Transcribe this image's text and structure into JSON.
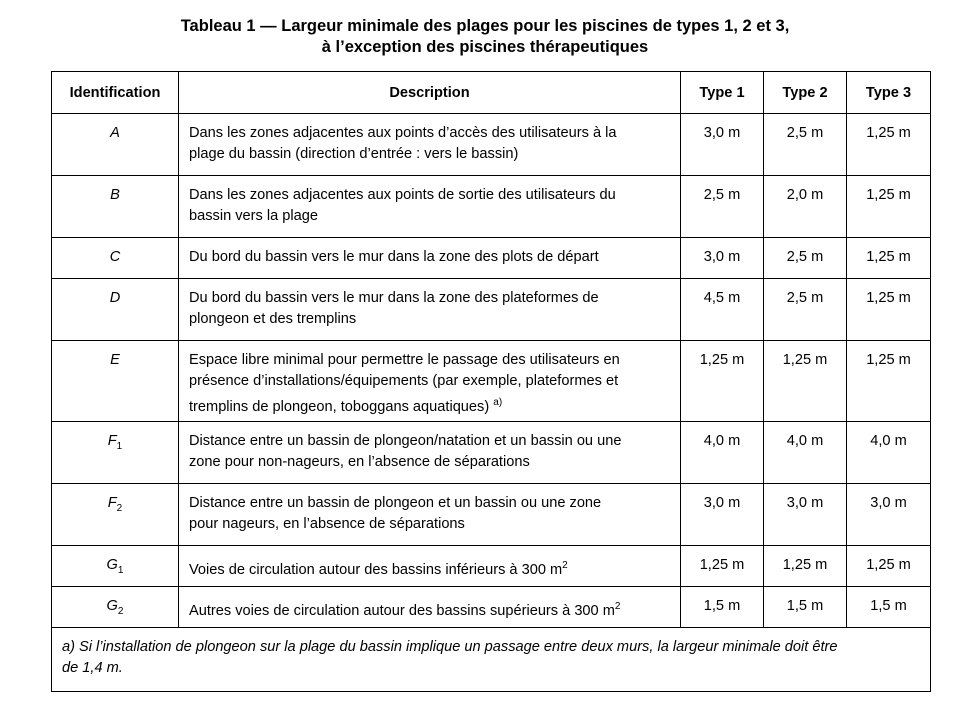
{
  "title": [
    "Tableau 1 — Largeur minimale des plages pour les piscines de types 1, 2 et 3,",
    "à l’exception des piscines thérapeutiques"
  ],
  "headers": [
    "Identification",
    "Description",
    "Type 1",
    "Type 2",
    "Type 3"
  ],
  "rows": [
    {
      "id": "A",
      "sub": "",
      "lines": [
        "Dans les zones adjacentes aux points d’accès des utilisateurs à la",
        "plage du bassin (direction d’entrée : vers le bassin)"
      ],
      "sup": "",
      "values": [
        "3,0 m",
        "2,5 m",
        "1,25 m"
      ]
    },
    {
      "id": "B",
      "sub": "",
      "lines": [
        "Dans les zones adjacentes aux points de sortie des utilisateurs du",
        "bassin vers la plage"
      ],
      "sup": "",
      "values": [
        "2,5 m",
        "2,0 m",
        "1,25 m"
      ]
    },
    {
      "id": "C",
      "sub": "",
      "lines": [
        "Du bord du bassin vers le mur dans la zone des plots de départ"
      ],
      "sup": "",
      "values": [
        "3,0 m",
        "2,5 m",
        "1,25 m"
      ]
    },
    {
      "id": "D",
      "sub": "",
      "lines": [
        "Du bord du bassin vers le mur dans la zone des plateformes de",
        "plongeon et des tremplins"
      ],
      "sup": "",
      "values": [
        "4,5 m",
        "2,5 m",
        "1,25 m"
      ]
    },
    {
      "id": "E",
      "sub": "",
      "lines": [
        "Espace libre minimal pour permettre le passage des utilisateurs en",
        "présence d’installations/équipements (par exemple, plateformes et",
        "tremplins de plongeon, toboggans aquatiques) "
      ],
      "sup": "a)",
      "values": [
        "1,25 m",
        "1,25 m",
        "1,25 m"
      ]
    },
    {
      "id": "F",
      "sub": "1",
      "lines": [
        "Distance entre un bassin de plongeon/natation et un bassin ou une",
        "zone pour non-nageurs, en l’absence de séparations"
      ],
      "sup": "",
      "values": [
        "4,0 m",
        "4,0 m",
        "4,0 m"
      ]
    },
    {
      "id": "F",
      "sub": "2",
      "lines": [
        "Distance entre un bassin de plongeon et un bassin ou une zone",
        "pour nageurs, en l’absence de séparations"
      ],
      "sup": "",
      "values": [
        "3,0 m",
        "3,0 m",
        "3,0 m"
      ]
    },
    {
      "id": "G",
      "sub": "1",
      "lines": [
        "Voies de circulation autour des bassins inférieurs à 300 m"
      ],
      "sup": "2",
      "values": [
        "1,25 m",
        "1,25 m",
        "1,25 m"
      ]
    },
    {
      "id": "G",
      "sub": "2",
      "lines": [
        "Autres voies de circulation autour des bassins supérieurs à 300 m"
      ],
      "sup": "2",
      "values": [
        "1,5 m",
        "1,5 m",
        "1,5 m"
      ]
    }
  ],
  "footnote": [
    "a) Si l’installation de plongeon sur la plage du bassin implique un passage entre deux murs, la largeur minimale doit être",
    "de 1,4 m."
  ]
}
